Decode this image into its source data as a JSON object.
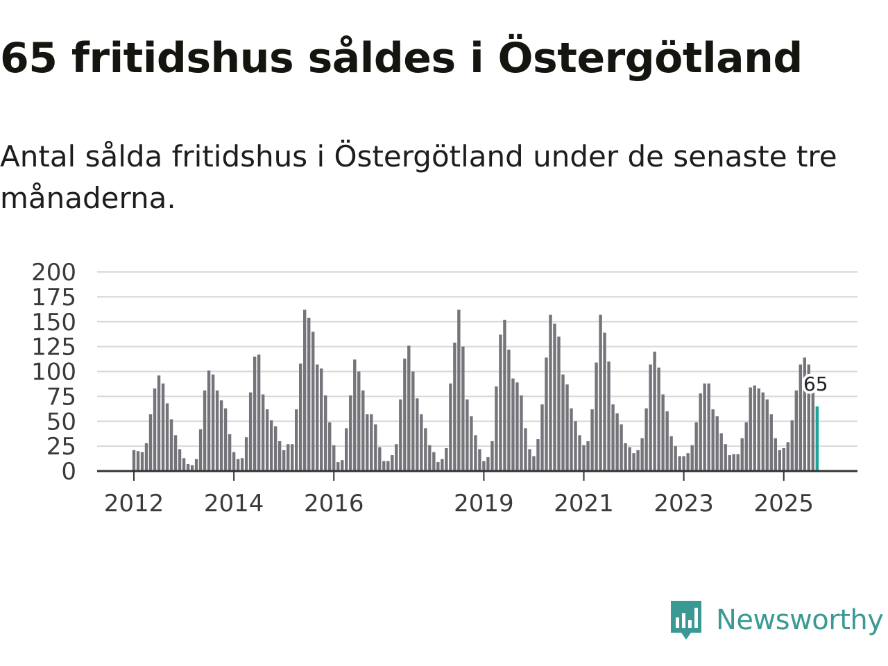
{
  "title": "65 fritidshus såldes i Östergötland",
  "subtitle": "Antal sålda fritidshus i Östergötland under de senaste tre månaderna.",
  "brand": {
    "name": "Newsworthy",
    "color": "#3a9a93"
  },
  "colors": {
    "bar": "#75747a",
    "highlight": "#1aa39a",
    "grid": "#d9d9d9",
    "axis": "#333333"
  },
  "chart_data": {
    "type": "bar",
    "title": "",
    "xlabel": "",
    "ylabel": "",
    "ylim": [
      0,
      200
    ],
    "yticks": [
      0,
      25,
      50,
      75,
      100,
      125,
      150,
      175,
      200
    ],
    "x_ticks": [
      {
        "label": "2012",
        "index": 0
      },
      {
        "label": "2014",
        "index": 24
      },
      {
        "label": "2016",
        "index": 48
      },
      {
        "label": "2019",
        "index": 84
      },
      {
        "label": "2021",
        "index": 108
      },
      {
        "label": "2023",
        "index": 132
      },
      {
        "label": "2025",
        "index": 156
      }
    ],
    "start": "2012-01",
    "series": [
      {
        "name": "Sålda fritidshus",
        "values": [
          21,
          20,
          19,
          28,
          57,
          83,
          96,
          88,
          68,
          52,
          36,
          22,
          13,
          7,
          6,
          12,
          42,
          81,
          101,
          97,
          81,
          71,
          63,
          37,
          19,
          12,
          13,
          34,
          79,
          115,
          117,
          77,
          62,
          51,
          45,
          30,
          21,
          27,
          27,
          62,
          108,
          162,
          154,
          140,
          107,
          103,
          76,
          49,
          26,
          9,
          11,
          43,
          76,
          112,
          100,
          81,
          57,
          57,
          47,
          24,
          10,
          10,
          16,
          27,
          72,
          113,
          126,
          100,
          73,
          57,
          43,
          26,
          19,
          9,
          12,
          23,
          88,
          129,
          162,
          125,
          72,
          55,
          36,
          22,
          10,
          14,
          30,
          85,
          137,
          152,
          122,
          93,
          89,
          76,
          43,
          22,
          15,
          32,
          67,
          114,
          157,
          148,
          135,
          97,
          87,
          63,
          50,
          36,
          26,
          30,
          62,
          109,
          157,
          139,
          110,
          67,
          58,
          47,
          28,
          24,
          18,
          21,
          33,
          63,
          107,
          120,
          104,
          77,
          60,
          35,
          25,
          15,
          15,
          18,
          26,
          49,
          78,
          88,
          88,
          62,
          55,
          38,
          27,
          16,
          17,
          17,
          33,
          49,
          84,
          86,
          83,
          79,
          72,
          57,
          33,
          21,
          23,
          29,
          51,
          81,
          107,
          114,
          107,
          88,
          65
        ]
      }
    ],
    "highlight_last": true,
    "annotation": {
      "label": "65",
      "value": 65
    }
  }
}
